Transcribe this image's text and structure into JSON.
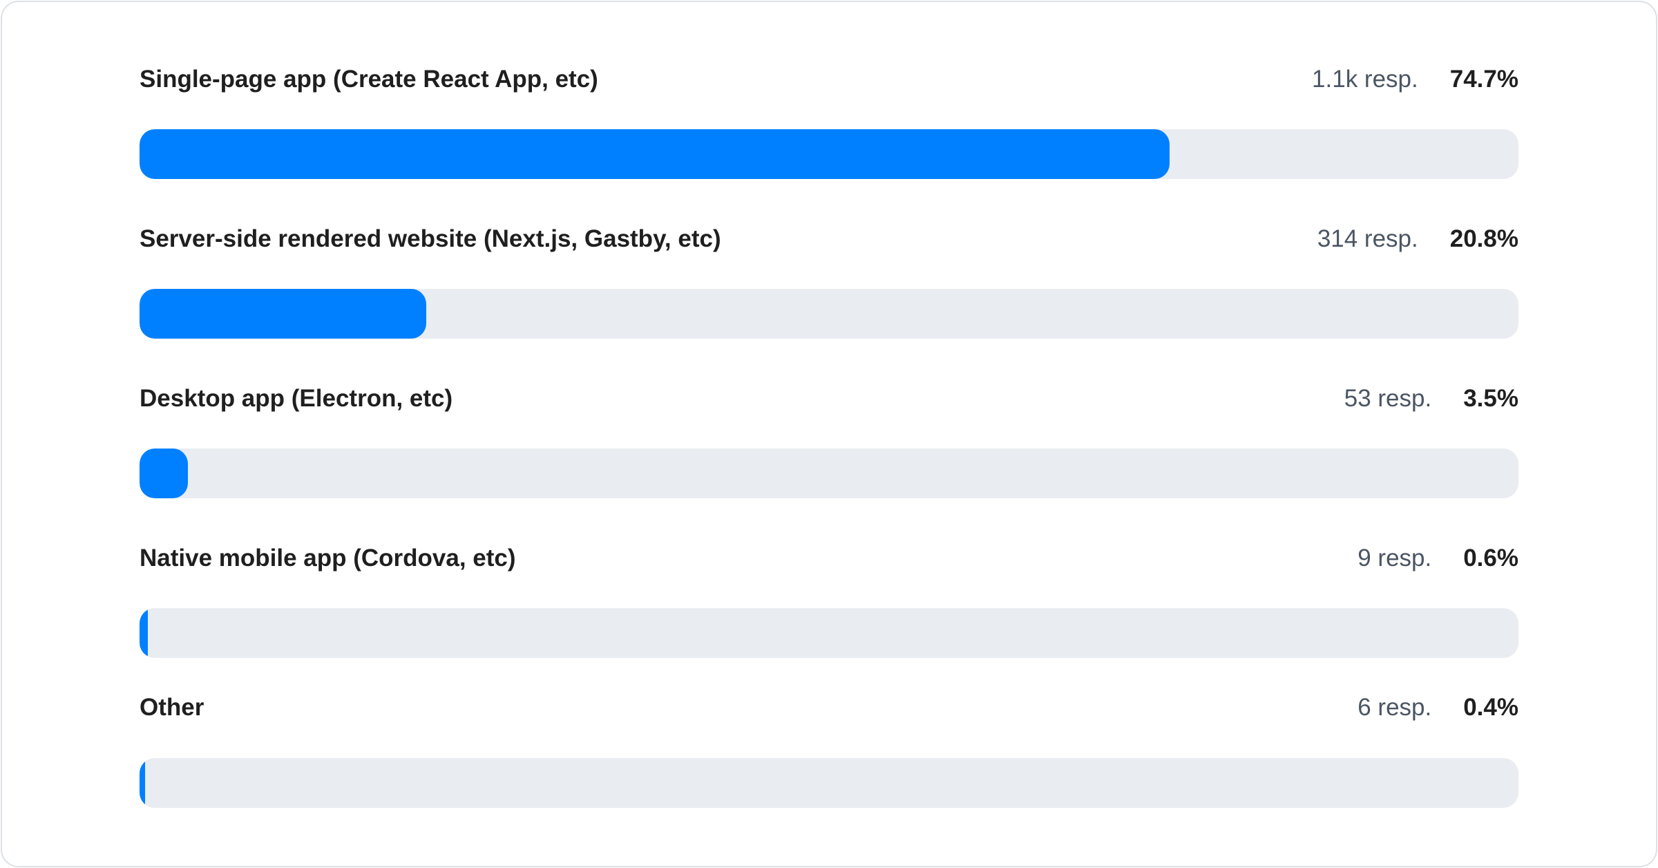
{
  "chart_data": {
    "type": "bar",
    "orientation": "horizontal",
    "categories": [
      "Single-page app (Create React App, etc)",
      "Server-side rendered website (Next.js, Gastby, etc)",
      "Desktop app (Electron, etc)",
      "Native mobile app (Cordova, etc)",
      "Other"
    ],
    "values": [
      74.7,
      20.8,
      3.5,
      0.6,
      0.4
    ],
    "xlim": [
      0,
      100
    ],
    "unit": "%",
    "bar_color": "#0080ff",
    "track_color": "#e9ecf1",
    "items": [
      {
        "label": "Single-page app (Create React App, etc)",
        "responses": "1.1k resp.",
        "percent_label": "74.7%",
        "percent": 74.7
      },
      {
        "label": "Server-side rendered website (Next.js, Gastby, etc)",
        "responses": "314 resp.",
        "percent_label": "20.8%",
        "percent": 20.8
      },
      {
        "label": "Desktop app (Electron, etc)",
        "responses": "53 resp.",
        "percent_label": "3.5%",
        "percent": 3.5
      },
      {
        "label": "Native mobile app (Cordova, etc)",
        "responses": "9 resp.",
        "percent_label": "0.6%",
        "percent": 0.6
      },
      {
        "label": "Other",
        "responses": "6 resp.",
        "percent_label": "0.4%",
        "percent": 0.4
      }
    ]
  }
}
